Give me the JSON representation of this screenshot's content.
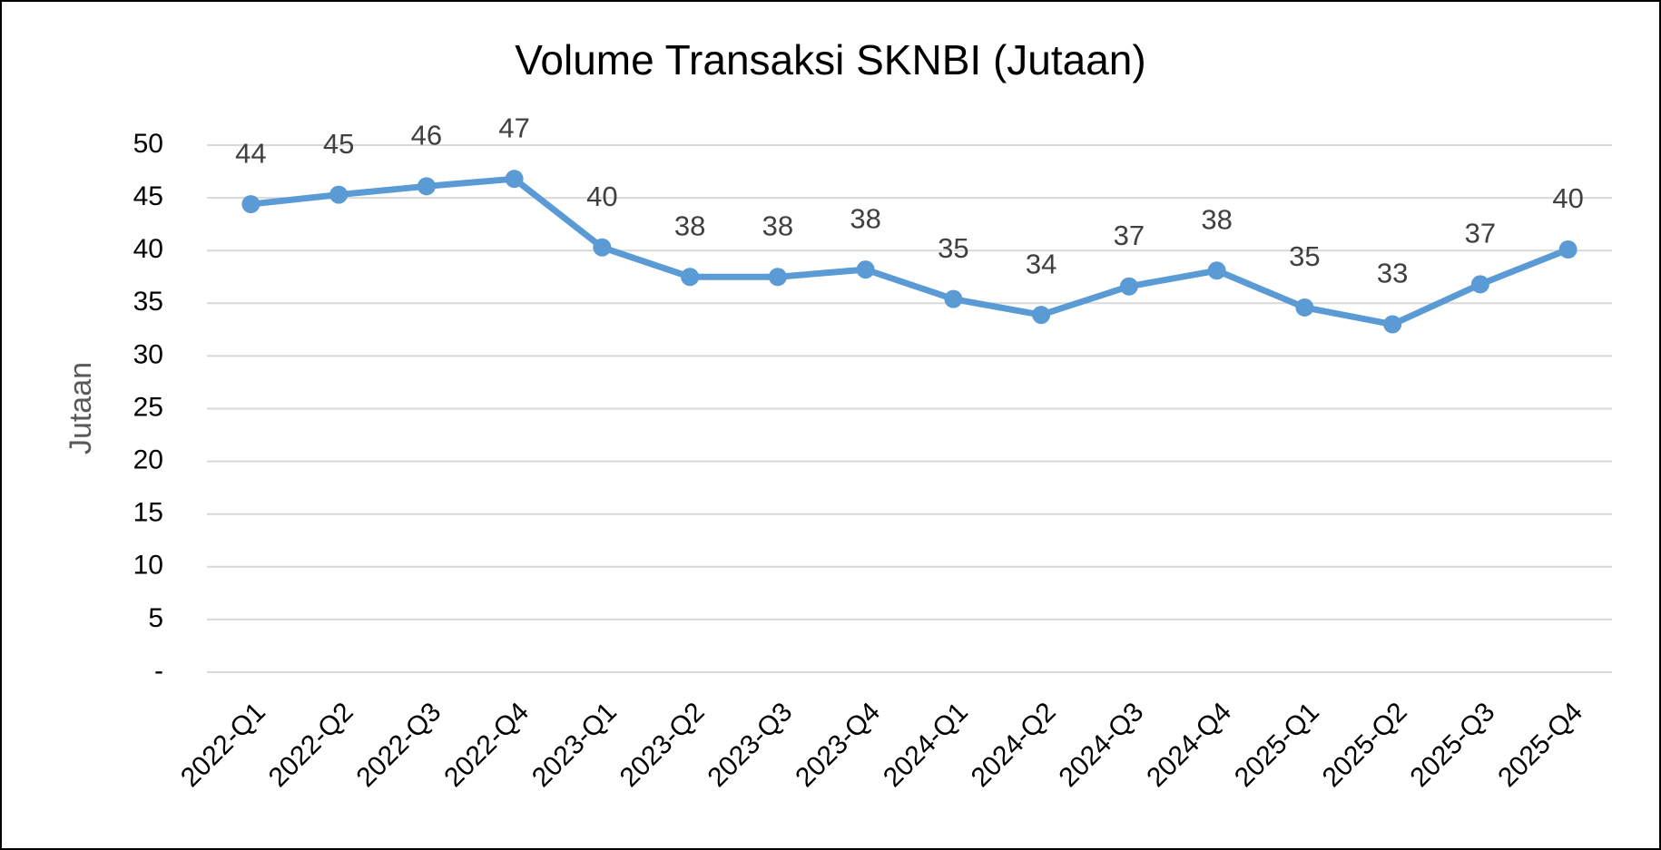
{
  "chart_data": {
    "type": "line",
    "title": "Volume Transaksi SKNBI (Jutaan)",
    "y_label": "Jutaan",
    "categories": [
      "2022-Q1",
      "2022-Q2",
      "2022-Q3",
      "2022-Q4",
      "2023-Q1",
      "2023-Q2",
      "2023-Q3",
      "2023-Q4",
      "2024-Q1",
      "2024-Q2",
      "2024-Q3",
      "2024-Q4",
      "2025-Q1",
      "2025-Q2",
      "2025-Q3",
      "2025-Q4"
    ],
    "series": [
      {
        "name": "Volume",
        "color": "#5b9bd5",
        "values": [
          44.4,
          45.3,
          46.1,
          46.8,
          40.3,
          37.5,
          37.5,
          38.2,
          35.4,
          33.9,
          36.6,
          38.1,
          34.6,
          33.0,
          36.8,
          40.1
        ],
        "value_labels": [
          "44",
          "45",
          "46",
          "47",
          "40",
          "38",
          "38",
          "38",
          "35",
          "34",
          "37",
          "38",
          "35",
          "33",
          "37",
          "40"
        ]
      }
    ],
    "ylim": [
      0,
      50
    ],
    "yticks": [
      {
        "value": 0,
        "label": "-"
      },
      5,
      10,
      15,
      20,
      25,
      30,
      35,
      40,
      45,
      50
    ],
    "grid": true
  }
}
